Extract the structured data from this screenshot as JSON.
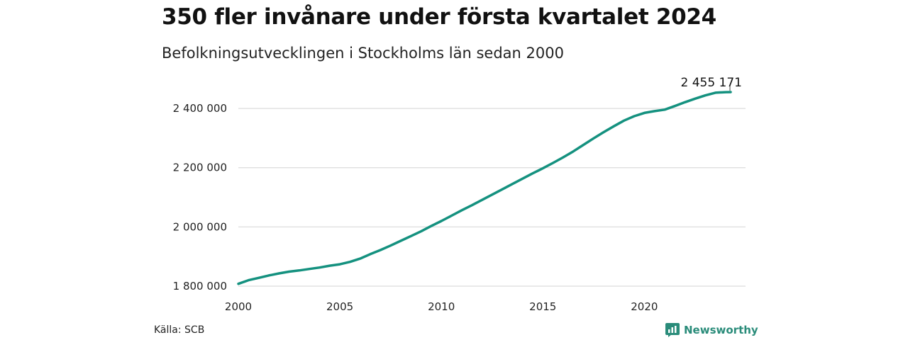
{
  "title": "350 fler invånare under första kvartalet 2024",
  "subtitle": "Befolkningsutvecklingen i Stockholms län sedan 2000",
  "source": "Källa: SCB",
  "brand": {
    "name": "Newsworthy",
    "icon": "newsworthy-logo-icon",
    "color": "#2a8c7a"
  },
  "colors": {
    "line": "#14917f",
    "grid": "#dcdcdc",
    "text": "#1a1a1a"
  },
  "chart_data": {
    "type": "line",
    "title": "350 fler invånare under första kvartalet 2024",
    "subtitle": "Befolkningsutvecklingen i Stockholms län sedan 2000",
    "xlabel": "",
    "ylabel": "",
    "xlim": [
      2000,
      2024.25
    ],
    "ylim": [
      1800000,
      2460000
    ],
    "x_ticks": [
      2000,
      2005,
      2010,
      2015,
      2020
    ],
    "x_tick_labels": [
      "2000",
      "2005",
      "2010",
      "2015",
      "2020"
    ],
    "y_ticks": [
      1800000,
      2000000,
      2200000,
      2400000
    ],
    "y_tick_labels": [
      "1 800 000",
      "2 000 000",
      "2 200 000",
      "2 400 000"
    ],
    "grid": true,
    "end_label": "2 455 171",
    "series": [
      {
        "x": [
          2000.0,
          2000.5,
          2001.0,
          2001.5,
          2002.0,
          2002.5,
          2003.0,
          2003.5,
          2004.0,
          2004.5,
          2005.0,
          2005.5,
          2006.0,
          2006.5,
          2007.0,
          2007.5,
          2008.0,
          2008.5,
          2009.0,
          2009.5,
          2010.0,
          2010.5,
          2011.0,
          2011.5,
          2012.0,
          2012.5,
          2013.0,
          2013.5,
          2014.0,
          2014.5,
          2015.0,
          2015.5,
          2016.0,
          2016.5,
          2017.0,
          2017.5,
          2018.0,
          2018.5,
          2019.0,
          2019.5,
          2020.0,
          2020.5,
          2021.0,
          2021.5,
          2022.0,
          2022.5,
          2023.0,
          2023.5,
          2024.0,
          2024.25
        ],
        "values": [
          1808000,
          1820000,
          1828000,
          1836000,
          1843000,
          1849000,
          1853000,
          1858000,
          1863000,
          1869000,
          1874000,
          1882000,
          1893000,
          1908000,
          1922000,
          1937000,
          1953000,
          1969000,
          1985000,
          2003000,
          2020000,
          2038000,
          2056000,
          2073000,
          2091000,
          2109000,
          2127000,
          2145000,
          2163000,
          2181000,
          2198000,
          2216000,
          2235000,
          2255000,
          2277000,
          2299000,
          2320000,
          2340000,
          2359000,
          2374000,
          2385000,
          2391000,
          2396000,
          2408000,
          2421000,
          2433000,
          2444000,
          2453000,
          2455000,
          2455171
        ]
      }
    ]
  }
}
